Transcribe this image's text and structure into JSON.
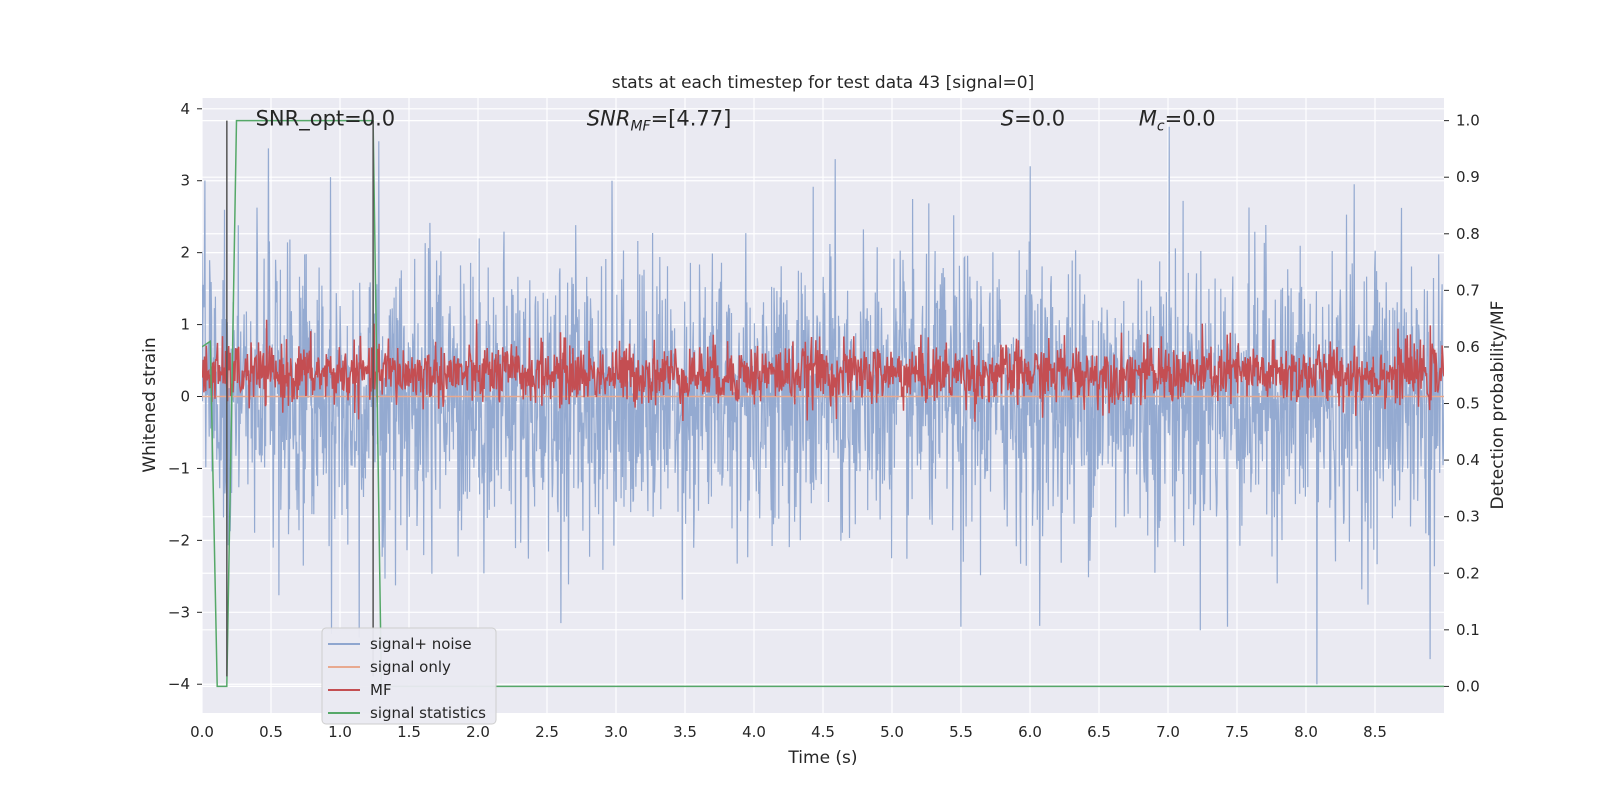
{
  "chart_data": {
    "type": "line",
    "title": "stats at each timestep for test data 43 [signal=0]",
    "xlabel": "Time (s)",
    "ylabel": "Whitened strain",
    "ylabel_right": "Detection probability/MF",
    "xlim": [
      0.0,
      9.0
    ],
    "ylim": [
      -4.4,
      4.15
    ],
    "ylim_right": [
      -0.047,
      1.04
    ],
    "xticks": [
      "0.0",
      "0.5",
      "1.0",
      "1.5",
      "2.0",
      "2.5",
      "3.0",
      "3.5",
      "4.0",
      "4.5",
      "5.0",
      "5.5",
      "6.0",
      "6.5",
      "7.0",
      "7.5",
      "8.0",
      "8.5"
    ],
    "xtick_values": [
      0.0,
      0.5,
      1.0,
      1.5,
      2.0,
      2.5,
      3.0,
      3.5,
      4.0,
      4.5,
      5.0,
      5.5,
      6.0,
      6.5,
      7.0,
      7.5,
      8.0,
      8.5
    ],
    "yticks": [
      "4",
      "3",
      "2",
      "1",
      "0",
      "−1",
      "−2",
      "−3",
      "−4"
    ],
    "ytick_values": [
      4,
      3,
      2,
      1,
      0,
      -1,
      -2,
      -3,
      -4
    ],
    "yticks_right": [
      "1.0",
      "0.9",
      "0.8",
      "0.7",
      "0.6",
      "0.5",
      "0.4",
      "0.3",
      "0.2",
      "0.1",
      "0.0"
    ],
    "ytick_values_right": [
      1.0,
      0.9,
      0.8,
      0.7,
      0.6,
      0.5,
      0.4,
      0.3,
      0.2,
      0.1,
      0.0
    ],
    "annotations": [
      {
        "text": "SNR_opt=0.0",
        "x": 0.2,
        "y": 3.85
      },
      {
        "text": "SNR",
        "sub": "MF",
        "suffix": "=[4.77]",
        "italic": true,
        "x": 2.6,
        "y": 3.85
      },
      {
        "text": "S",
        "suffix": "=0.0",
        "italic": true,
        "x": 5.6,
        "y": 3.85
      },
      {
        "text": "M",
        "sub": "c",
        "suffix": "=0.0",
        "italic": true,
        "x": 6.6,
        "y": 3.85
      }
    ],
    "vertical_lines": [
      0.18,
      1.24
    ],
    "series": [
      {
        "name": "signal+ noise",
        "color": "#8fa6cf",
        "axis": "left",
        "kind": "noise",
        "mean": 0.0,
        "envelope": 1.55,
        "peaks": [
          {
            "x": 0.48,
            "y": 3.45
          },
          {
            "x": 0.93,
            "y": 3.05
          },
          {
            "x": 1.28,
            "y": 3.55
          },
          {
            "x": 2.97,
            "y": 3.0
          },
          {
            "x": 4.59,
            "y": 3.3
          },
          {
            "x": 6.0,
            "y": 3.2
          },
          {
            "x": 7.01,
            "y": 3.75
          },
          {
            "x": 8.35,
            "y": 2.95
          },
          {
            "x": 0.94,
            "y": -3.3
          },
          {
            "x": 2.6,
            "y": -3.15
          },
          {
            "x": 5.5,
            "y": -3.2
          },
          {
            "x": 7.43,
            "y": -3.2
          },
          {
            "x": 8.08,
            "y": -4.0
          },
          {
            "x": 8.9,
            "y": -3.65
          },
          {
            "x": 1.14,
            "y": -3.35
          }
        ]
      },
      {
        "name": "signal only",
        "color": "#e8a98f",
        "axis": "left",
        "kind": "flat",
        "value": 0.0
      },
      {
        "name": "MF",
        "color": "#c44e52",
        "axis": "right",
        "kind": "noise",
        "mean": 0.552,
        "envelope": 0.03,
        "peaks": [
          {
            "x": 2.6,
            "y": 0.626
          },
          {
            "x": 6.25,
            "y": 0.621
          },
          {
            "x": 7.45,
            "y": 0.625
          },
          {
            "x": 1.35,
            "y": 0.615
          },
          {
            "x": 4.45,
            "y": 0.612
          },
          {
            "x": 8.72,
            "y": 0.615
          }
        ]
      },
      {
        "name": "signal statistics",
        "color": "#55a868",
        "axis": "right",
        "kind": "path",
        "points": [
          [
            0.0,
            0.6
          ],
          [
            0.06,
            0.61
          ],
          [
            0.11,
            0.0
          ],
          [
            0.18,
            0.0
          ],
          [
            0.25,
            1.0
          ],
          [
            1.24,
            1.0
          ],
          [
            1.3,
            0.0
          ],
          [
            9.0,
            0.0
          ]
        ]
      }
    ],
    "legend": {
      "position": "lower-left",
      "entries": [
        "signal+ noise",
        "signal only",
        "MF",
        "signal statistics"
      ]
    },
    "grid": true
  }
}
